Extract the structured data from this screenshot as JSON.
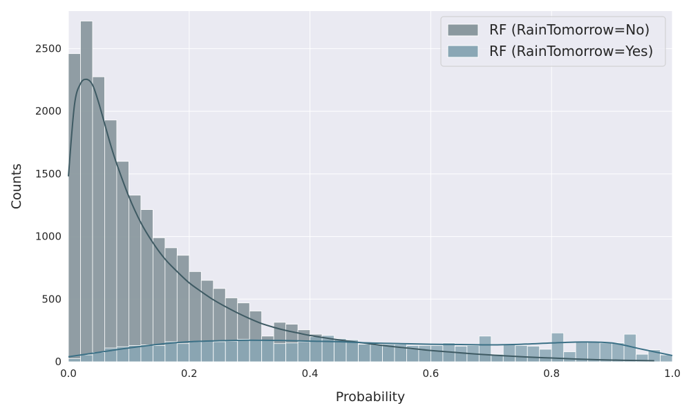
{
  "chart_data": {
    "type": "bar",
    "title": "",
    "xlabel": "Probability",
    "ylabel": "Counts",
    "xlim": [
      0.0,
      1.0
    ],
    "ylim": [
      0,
      2800
    ],
    "x_ticks": [
      "0.0",
      "0.2",
      "0.4",
      "0.6",
      "0.8",
      "1.0"
    ],
    "y_ticks": [
      "0",
      "500",
      "1000",
      "1500",
      "2000",
      "2500"
    ],
    "grid": true,
    "legend_position": "top-right",
    "bin_width": 0.02,
    "series": [
      {
        "name": "RF (RainTomorrow=No)",
        "color": "#8b999f",
        "bin_starts": [
          0.0,
          0.02,
          0.04,
          0.06,
          0.08,
          0.1,
          0.12,
          0.14,
          0.16,
          0.18,
          0.2,
          0.22,
          0.24,
          0.26,
          0.28,
          0.3,
          0.32,
          0.34,
          0.36,
          0.38,
          0.4,
          0.42,
          0.44,
          0.46,
          0.48,
          0.5,
          0.52,
          0.54,
          0.56,
          0.58,
          0.6,
          0.62,
          0.64,
          0.66,
          0.68,
          0.7,
          0.72,
          0.74,
          0.76,
          0.78,
          0.8,
          0.82,
          0.84,
          0.86,
          0.88,
          0.9,
          0.92,
          0.94
        ],
        "values": [
          2460,
          2720,
          2275,
          1930,
          1600,
          1330,
          1215,
          990,
          910,
          850,
          720,
          650,
          585,
          510,
          470,
          405,
          205,
          315,
          300,
          255,
          220,
          180,
          170,
          155,
          140,
          130,
          120,
          115,
          100,
          95,
          95,
          85,
          80,
          70,
          60,
          55,
          45,
          40,
          35,
          30,
          30,
          25,
          20,
          15,
          10,
          10,
          8,
          5
        ]
      },
      {
        "name": "RF (RainTomorrow=Yes)",
        "color": "#8aa7b5",
        "bin_starts": [
          0.0,
          0.02,
          0.04,
          0.06,
          0.08,
          0.1,
          0.12,
          0.14,
          0.16,
          0.18,
          0.2,
          0.22,
          0.24,
          0.26,
          0.28,
          0.3,
          0.32,
          0.34,
          0.36,
          0.38,
          0.4,
          0.42,
          0.44,
          0.46,
          0.48,
          0.5,
          0.52,
          0.54,
          0.56,
          0.58,
          0.6,
          0.62,
          0.64,
          0.66,
          0.68,
          0.7,
          0.72,
          0.74,
          0.76,
          0.78,
          0.8,
          0.82,
          0.84,
          0.86,
          0.88,
          0.9,
          0.92,
          0.94,
          0.96,
          0.98
        ],
        "values": [
          25,
          55,
          75,
          110,
          120,
          130,
          135,
          130,
          160,
          145,
          160,
          165,
          160,
          165,
          180,
          175,
          170,
          145,
          150,
          160,
          200,
          210,
          185,
          175,
          140,
          140,
          140,
          140,
          130,
          130,
          130,
          150,
          125,
          130,
          205,
          60,
          140,
          130,
          125,
          100,
          230,
          80,
          155,
          160,
          150,
          150,
          220,
          60,
          95,
          55
        ]
      }
    ],
    "kde": [
      {
        "series": "RF (RainTomorrow=No)",
        "color": "#3e5a63",
        "x": [
          0.0,
          0.01,
          0.02,
          0.03,
          0.04,
          0.05,
          0.06,
          0.07,
          0.08,
          0.1,
          0.12,
          0.14,
          0.16,
          0.18,
          0.2,
          0.22,
          0.24,
          0.26,
          0.28,
          0.3,
          0.32,
          0.34,
          0.36,
          0.38,
          0.4,
          0.44,
          0.48,
          0.52,
          0.56,
          0.6,
          0.64,
          0.68,
          0.72,
          0.76,
          0.8,
          0.84,
          0.88,
          0.92,
          0.97
        ],
        "y": [
          1480,
          2050,
          2220,
          2255,
          2210,
          2070,
          1900,
          1730,
          1580,
          1320,
          1110,
          950,
          820,
          720,
          630,
          560,
          495,
          440,
          390,
          345,
          305,
          275,
          250,
          230,
          210,
          180,
          155,
          130,
          110,
          90,
          75,
          60,
          48,
          38,
          30,
          22,
          16,
          12,
          8
        ]
      },
      {
        "series": "RF (RainTomorrow=Yes)",
        "color": "#3b7086",
        "x": [
          0.0,
          0.05,
          0.1,
          0.15,
          0.2,
          0.25,
          0.3,
          0.35,
          0.4,
          0.45,
          0.5,
          0.55,
          0.6,
          0.65,
          0.7,
          0.75,
          0.8,
          0.85,
          0.9,
          0.95,
          1.0
        ],
        "y": [
          40,
          75,
          110,
          140,
          160,
          168,
          172,
          170,
          165,
          160,
          150,
          145,
          140,
          138,
          135,
          140,
          150,
          158,
          150,
          100,
          50
        ]
      }
    ]
  }
}
